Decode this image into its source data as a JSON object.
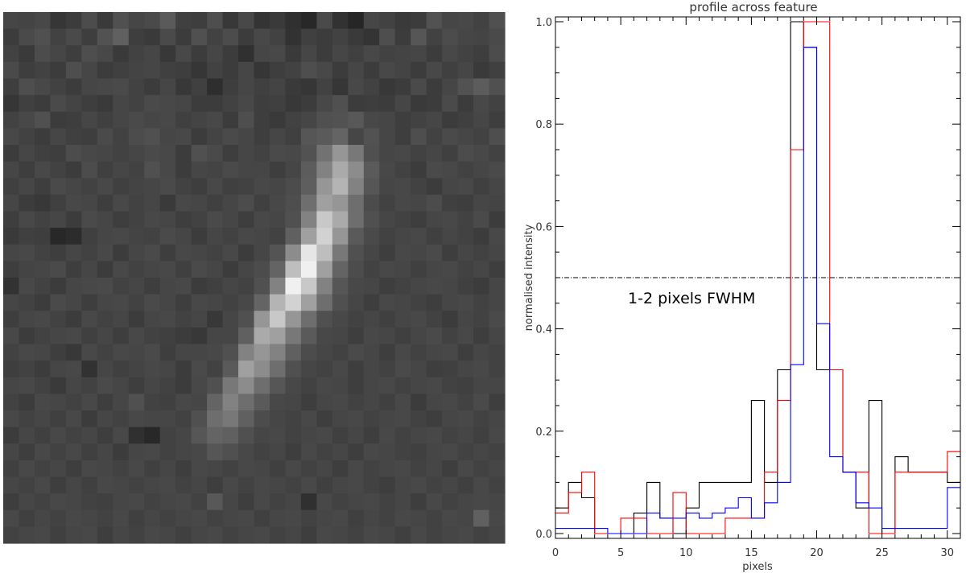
{
  "image_panel": {
    "rows": 32,
    "cols": 32,
    "description_of_content": "greyscale pixel image of a narrow diagonal streak",
    "pixels": [
      [
        70,
        68,
        72,
        54,
        60,
        76,
        58,
        80,
        70,
        74,
        90,
        64,
        62,
        78,
        56,
        72,
        52,
        58,
        48,
        40,
        74,
        50,
        38,
        70,
        66,
        58,
        60,
        82,
        70,
        72,
        66,
        80
      ],
      [
        60,
        74,
        80,
        66,
        74,
        62,
        82,
        96,
        62,
        58,
        74,
        60,
        80,
        66,
        76,
        60,
        72,
        66,
        50,
        64,
        60,
        66,
        58,
        52,
        78,
        60,
        86,
        66,
        76,
        70,
        68,
        74
      ],
      [
        66,
        58,
        76,
        70,
        62,
        78,
        72,
        58,
        66,
        70,
        56,
        72,
        60,
        70,
        60,
        48,
        70,
        72,
        58,
        70,
        60,
        70,
        64,
        72,
        66,
        68,
        70,
        60,
        72,
        66,
        62,
        76
      ],
      [
        74,
        62,
        66,
        60,
        78,
        70,
        60,
        64,
        68,
        70,
        64,
        62,
        54,
        66,
        60,
        70,
        54,
        62,
        66,
        78,
        72,
        60,
        70,
        60,
        72,
        68,
        60,
        72,
        64,
        70,
        58,
        64
      ],
      [
        62,
        78,
        72,
        66,
        60,
        70,
        72,
        74,
        66,
        60,
        70,
        56,
        64,
        46,
        62,
        70,
        64,
        68,
        58,
        54,
        66,
        54,
        72,
        66,
        56,
        60,
        74,
        60,
        70,
        82,
        92,
        80
      ],
      [
        54,
        64,
        60,
        74,
        68,
        62,
        58,
        70,
        66,
        74,
        72,
        70,
        60,
        60,
        66,
        72,
        62,
        64,
        56,
        60,
        72,
        80,
        60,
        62,
        60,
        70,
        58,
        60,
        74,
        60,
        72,
        66
      ],
      [
        66,
        72,
        80,
        60,
        62,
        70,
        64,
        70,
        74,
        70,
        72,
        64,
        68,
        72,
        60,
        78,
        62,
        58,
        66,
        70,
        80,
        82,
        88,
        72,
        70,
        62,
        66,
        70,
        60,
        64,
        70,
        62
      ],
      [
        72,
        66,
        60,
        70,
        64,
        62,
        74,
        66,
        76,
        80,
        70,
        72,
        60,
        68,
        74,
        70,
        62,
        70,
        64,
        86,
        90,
        100,
        70,
        82,
        70,
        62,
        78,
        66,
        74,
        70,
        66,
        78
      ],
      [
        60,
        70,
        64,
        62,
        76,
        72,
        70,
        66,
        70,
        74,
        72,
        60,
        80,
        74,
        62,
        70,
        66,
        74,
        72,
        82,
        114,
        150,
        120,
        80,
        70,
        72,
        66,
        70,
        64,
        76,
        72,
        66
      ],
      [
        70,
        62,
        72,
        66,
        60,
        76,
        64,
        70,
        66,
        80,
        72,
        60,
        70,
        68,
        74,
        70,
        70,
        62,
        70,
        92,
        130,
        170,
        140,
        90,
        72,
        66,
        60,
        74,
        72,
        66,
        70,
        74
      ],
      [
        64,
        70,
        62,
        74,
        70,
        66,
        72,
        64,
        68,
        70,
        74,
        66,
        62,
        72,
        64,
        66,
        72,
        70,
        76,
        94,
        150,
        180,
        130,
        86,
        70,
        72,
        66,
        60,
        70,
        72,
        64,
        70
      ],
      [
        70,
        60,
        56,
        64,
        72,
        70,
        62,
        72,
        66,
        70,
        58,
        72,
        70,
        64,
        70,
        76,
        64,
        72,
        78,
        110,
        160,
        150,
        110,
        76,
        66,
        72,
        70,
        76,
        64,
        62,
        70,
        68
      ],
      [
        62,
        72,
        66,
        70,
        60,
        74,
        70,
        62,
        66,
        72,
        70,
        62,
        66,
        74,
        70,
        62,
        72,
        70,
        80,
        130,
        200,
        170,
        110,
        80,
        70,
        66,
        62,
        70,
        72,
        66,
        74,
        60
      ],
      [
        58,
        64,
        62,
        40,
        44,
        64,
        70,
        72,
        68,
        66,
        74,
        70,
        60,
        70,
        66,
        72,
        70,
        66,
        96,
        160,
        210,
        150,
        90,
        74,
        66,
        70,
        72,
        64,
        70,
        66,
        60,
        72
      ],
      [
        70,
        72,
        66,
        62,
        70,
        66,
        72,
        60,
        70,
        74,
        62,
        72,
        70,
        66,
        72,
        60,
        70,
        84,
        140,
        230,
        190,
        120,
        80,
        70,
        62,
        72,
        70,
        74,
        62,
        70,
        66,
        70
      ],
      [
        62,
        68,
        70,
        74,
        62,
        70,
        60,
        72,
        66,
        70,
        72,
        64,
        74,
        70,
        60,
        70,
        76,
        100,
        190,
        240,
        160,
        100,
        76,
        66,
        72,
        70,
        64,
        70,
        72,
        66,
        70,
        62
      ],
      [
        50,
        72,
        66,
        60,
        70,
        72,
        74,
        66,
        70,
        62,
        70,
        72,
        60,
        64,
        70,
        66,
        80,
        130,
        240,
        200,
        130,
        86,
        72,
        70,
        62,
        66,
        70,
        72,
        70,
        64,
        60,
        70
      ],
      [
        70,
        66,
        60,
        74,
        70,
        62,
        70,
        72,
        66,
        74,
        70,
        62,
        72,
        70,
        66,
        72,
        100,
        180,
        210,
        160,
        110,
        80,
        70,
        62,
        72,
        70,
        66,
        62,
        70,
        72,
        66,
        70
      ],
      [
        62,
        70,
        72,
        66,
        60,
        72,
        66,
        70,
        60,
        70,
        72,
        66,
        70,
        56,
        70,
        80,
        150,
        200,
        150,
        110,
        80,
        72,
        66,
        70,
        64,
        70,
        72,
        66,
        60,
        70,
        66,
        74
      ],
      [
        72,
        60,
        66,
        70,
        72,
        64,
        70,
        62,
        72,
        66,
        64,
        60,
        56,
        70,
        70,
        96,
        170,
        160,
        120,
        90,
        72,
        70,
        62,
        72,
        70,
        64,
        70,
        74,
        66,
        72,
        62,
        70
      ],
      [
        66,
        72,
        70,
        62,
        56,
        72,
        66,
        72,
        70,
        74,
        62,
        70,
        70,
        72,
        80,
        130,
        150,
        130,
        96,
        76,
        70,
        66,
        74,
        70,
        62,
        72,
        66,
        70,
        72,
        62,
        70,
        66
      ],
      [
        62,
        66,
        60,
        70,
        72,
        50,
        70,
        64,
        68,
        72,
        70,
        60,
        74,
        66,
        90,
        160,
        140,
        110,
        80,
        70,
        66,
        72,
        62,
        70,
        66,
        74,
        70,
        62,
        64,
        70,
        72,
        66
      ],
      [
        70,
        72,
        66,
        58,
        70,
        66,
        74,
        70,
        62,
        70,
        66,
        60,
        72,
        80,
        120,
        140,
        110,
        86,
        72,
        66,
        72,
        70,
        62,
        70,
        72,
        66,
        70,
        72,
        66,
        64,
        70,
        70
      ],
      [
        66,
        60,
        72,
        70,
        66,
        72,
        62,
        70,
        80,
        66,
        64,
        72,
        70,
        100,
        130,
        110,
        90,
        72,
        70,
        62,
        70,
        72,
        66,
        70,
        64,
        72,
        60,
        70,
        72,
        66,
        74,
        62
      ],
      [
        72,
        66,
        70,
        64,
        72,
        60,
        70,
        66,
        72,
        70,
        70,
        66,
        80,
        110,
        120,
        96,
        76,
        70,
        66,
        72,
        62,
        70,
        72,
        66,
        70,
        72,
        66,
        62,
        70,
        72,
        66,
        70
      ],
      [
        60,
        70,
        64,
        72,
        66,
        70,
        62,
        72,
        48,
        40,
        66,
        70,
        86,
        100,
        96,
        80,
        70,
        72,
        66,
        70,
        72,
        64,
        70,
        62,
        72,
        66,
        70,
        72,
        66,
        70,
        64,
        72
      ],
      [
        70,
        62,
        72,
        66,
        72,
        64,
        70,
        60,
        70,
        72,
        66,
        70,
        72,
        86,
        80,
        72,
        66,
        70,
        62,
        72,
        66,
        70,
        62,
        72,
        70,
        66,
        64,
        70,
        72,
        66,
        70,
        66
      ],
      [
        64,
        72,
        66,
        70,
        62,
        72,
        70,
        66,
        72,
        64,
        70,
        62,
        72,
        70,
        66,
        72,
        70,
        64,
        72,
        66,
        70,
        62,
        72,
        66,
        70,
        72,
        66,
        70,
        62,
        72,
        66,
        70
      ],
      [
        70,
        66,
        72,
        62,
        70,
        64,
        72,
        70,
        66,
        70,
        72,
        66,
        70,
        62,
        72,
        66,
        72,
        70,
        66,
        72,
        64,
        70,
        72,
        66,
        62,
        70,
        72,
        66,
        70,
        64,
        72,
        66
      ],
      [
        62,
        70,
        66,
        72,
        70,
        66,
        64,
        70,
        72,
        66,
        70,
        72,
        66,
        88,
        70,
        62,
        72,
        66,
        70,
        48,
        72,
        66,
        70,
        72,
        66,
        70,
        62,
        72,
        66,
        70,
        72,
        70
      ],
      [
        72,
        64,
        70,
        66,
        72,
        70,
        66,
        72,
        64,
        70,
        66,
        70,
        72,
        66,
        70,
        72,
        64,
        70,
        72,
        66,
        70,
        72,
        64,
        70,
        66,
        72,
        70,
        66,
        72,
        70,
        96,
        72
      ],
      [
        66,
        70,
        72,
        64,
        70,
        72,
        62,
        70,
        66,
        72,
        70,
        64,
        70,
        72,
        66,
        70,
        72,
        66,
        70,
        62,
        72,
        70,
        66,
        72,
        70,
        64,
        72,
        66,
        70,
        72,
        66,
        70
      ]
    ]
  },
  "chart_data": {
    "type": "line",
    "step": true,
    "title": "profile across feature",
    "xlabel": "pixels",
    "ylabel": "normalised intensity",
    "xlim": [
      0,
      31
    ],
    "ylim": [
      0,
      1.0
    ],
    "x_ticks": [
      "0",
      "5",
      "10",
      "15",
      "20",
      "25",
      "30"
    ],
    "y_ticks": [
      "0.0",
      "0.2",
      "0.4",
      "0.6",
      "0.8",
      "1.0"
    ],
    "annotation": "1-2 pixels FWHM",
    "hline": {
      "y": 0.5,
      "style": "dash-dot"
    },
    "series": [
      {
        "color": "#000000",
        "values": [
          0.05,
          0.1,
          0.07,
          0.0,
          0.0,
          0.0,
          0.04,
          0.1,
          0.03,
          0.0,
          0.05,
          0.1,
          0.1,
          0.1,
          0.1,
          0.26,
          0.1,
          0.32,
          1.0,
          0.95,
          0.32,
          0.32,
          0.12,
          0.05,
          0.26,
          0.0,
          0.15,
          0.12,
          0.12,
          0.12,
          0.1
        ]
      },
      {
        "color": "#ff0000",
        "values": [
          0.04,
          0.08,
          0.12,
          0.0,
          0.0,
          0.03,
          0.03,
          0.0,
          0.0,
          0.08,
          0.0,
          0.0,
          0.0,
          0.03,
          0.03,
          0.03,
          0.12,
          0.26,
          0.75,
          1.0,
          1.0,
          0.32,
          0.12,
          0.12,
          0.0,
          0.0,
          0.12,
          0.12,
          0.12,
          0.12,
          0.16
        ]
      },
      {
        "color": "#0000ff",
        "values": [
          0.01,
          0.01,
          0.01,
          0.01,
          0.0,
          0.0,
          0.0,
          0.04,
          0.03,
          0.03,
          0.04,
          0.03,
          0.04,
          0.05,
          0.07,
          0.03,
          0.06,
          0.1,
          0.33,
          0.95,
          0.41,
          0.15,
          0.12,
          0.06,
          0.05,
          0.01,
          0.01,
          0.01,
          0.01,
          0.01,
          0.09
        ]
      }
    ]
  }
}
